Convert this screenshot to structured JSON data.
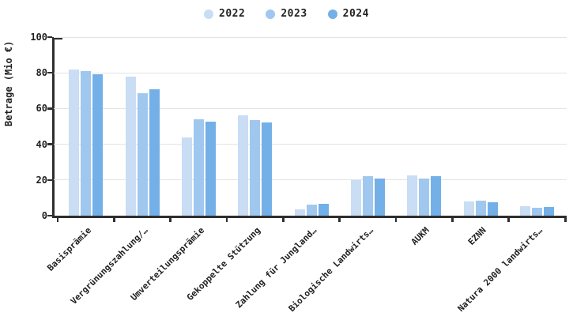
{
  "chart_data": {
    "type": "bar",
    "title": "",
    "ylabel": "Betrage (Mio €)",
    "xlabel": "",
    "ylim": [
      0,
      100
    ],
    "yticks": [
      0,
      20,
      40,
      60,
      80,
      100
    ],
    "grid": true,
    "legend_position": "top",
    "categories": [
      "Basisprämie",
      "Vergrünungszahlung/…",
      "Umverteilungsprämie",
      "Gekoppelte Stützung",
      "Zahlung für Jungland…",
      "Biologische Landwirts…",
      "AUKM",
      "EZNN",
      "Natura 2000 landwirts…"
    ],
    "series": [
      {
        "name": "2022",
        "color": "#c9ddf4",
        "values": [
          82,
          78,
          44,
          56,
          3.5,
          20,
          22.5,
          8,
          5.5
        ]
      },
      {
        "name": "2023",
        "color": "#a0c8ee",
        "values": [
          81,
          68.5,
          54,
          53.5,
          6,
          22,
          21,
          8.5,
          4.5
        ]
      },
      {
        "name": "2024",
        "color": "#74b0e8",
        "values": [
          79,
          71,
          52.5,
          52,
          6.5,
          21,
          22,
          7.5,
          5
        ]
      }
    ]
  },
  "colors": {
    "axis": "#2e2e2e",
    "gridline": "#e3e3e3",
    "text": "#1f1f1f",
    "background": "#ffffff"
  }
}
